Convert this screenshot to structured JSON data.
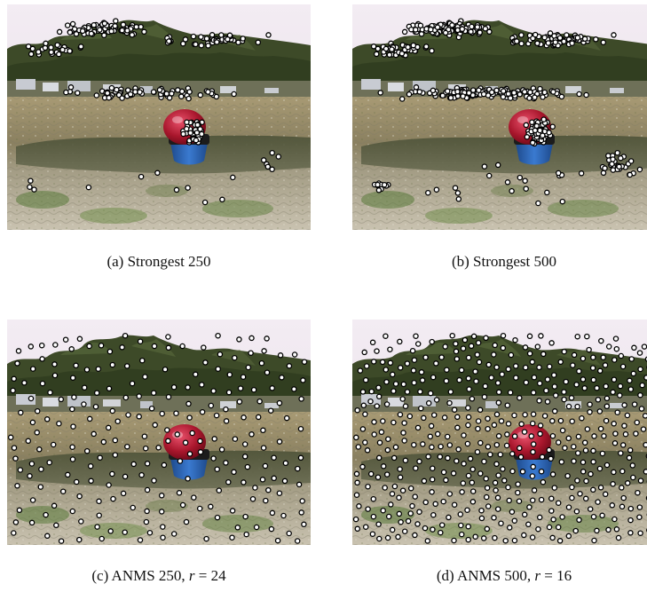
{
  "figure": {
    "panels": [
      {
        "label": "(a)",
        "method": "Strongest",
        "count": "250",
        "param_text": "",
        "r_value": "",
        "point_distribution": "clustered-high-contrast"
      },
      {
        "label": "(b)",
        "method": "Strongest",
        "count": "500",
        "param_text": "",
        "r_value": "",
        "point_distribution": "clustered-high-contrast"
      },
      {
        "label": "(c)",
        "method": "ANMS",
        "count": "250",
        "param_text": ", ",
        "r_value": "24",
        "point_distribution": "spatially-uniform"
      },
      {
        "label": "(d)",
        "method": "ANMS",
        "count": "500",
        "param_text": ", ",
        "r_value": "16",
        "point_distribution": "spatially-uniform"
      }
    ],
    "r_symbol": "r",
    "equals": " = ",
    "marker_colors": {
      "fill": "#ffffff",
      "stroke": "#000000"
    },
    "scene_colors": {
      "sky": "#efe6ee",
      "trees": "#3a4a26",
      "beach": "#b8a98a",
      "water": "#5c6148",
      "buoy_red": "#b01830",
      "buoy_blue": "#2c66b8"
    }
  }
}
